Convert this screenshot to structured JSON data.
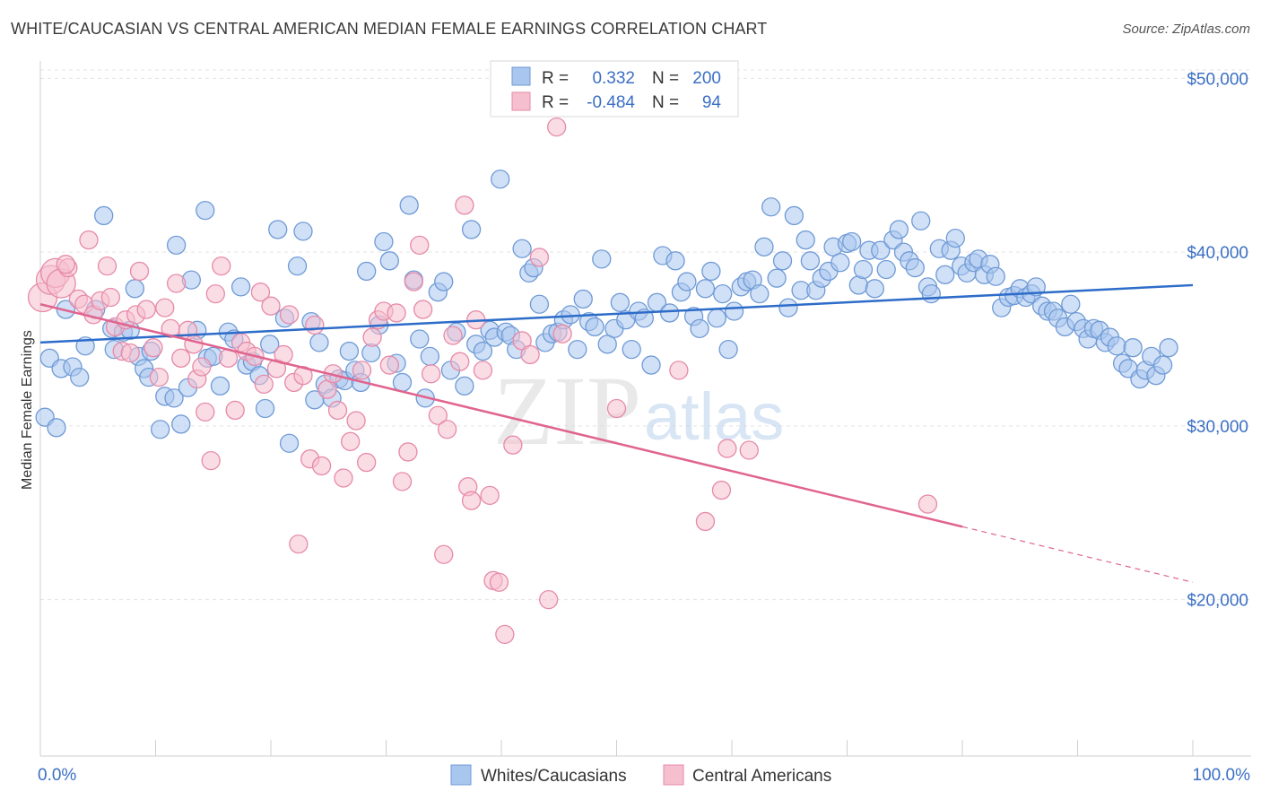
{
  "header": {
    "title": "WHITE/CAUCASIAN VS CENTRAL AMERICAN MEDIAN FEMALE EARNINGS CORRELATION CHART",
    "source": "Source: ZipAtlas.com"
  },
  "legend": {
    "r_label": "R =",
    "n_label": "N =",
    "rows": [
      {
        "r": "0.332",
        "n": "200"
      },
      {
        "r": "-0.484",
        "n": "94"
      }
    ]
  },
  "colors": {
    "blue_fill": "#a9c6ee",
    "blue_stroke": "#6f9ad6",
    "blue_line": "#2d6cc9",
    "pink_fill": "#f6bfd0",
    "pink_stroke": "#e68aa8",
    "pink_line": "#e0648e",
    "tick_text": "#3b6fc4"
  },
  "watermark": {
    "zip": "ZIP",
    "atlas": "atlas"
  },
  "chart_data": {
    "type": "scatter",
    "ylabel": "Median Female Earnings",
    "xlim": [
      0,
      100
    ],
    "ylim": [
      11000,
      51000
    ],
    "x_tick_labels": [
      "0.0%",
      "100.0%"
    ],
    "y_ticks": [
      20000,
      30000,
      40000,
      50000
    ],
    "y_tick_labels": [
      "$20,000",
      "$30,000",
      "$40,000",
      "$50,000"
    ],
    "grid": true,
    "legend_position": "top-center",
    "series": [
      {
        "name": "Whites/Caucasians",
        "trend": {
          "x": [
            0,
            100
          ],
          "y": [
            34800,
            38100
          ]
        },
        "points": [
          [
            0.4,
            30500
          ],
          [
            1.4,
            29900
          ],
          [
            0.8,
            33900
          ],
          [
            1.8,
            33300
          ],
          [
            2.2,
            36700
          ],
          [
            2.8,
            33400
          ],
          [
            3.4,
            32800
          ],
          [
            3.9,
            34600
          ],
          [
            4.8,
            36700
          ],
          [
            5.5,
            42100
          ],
          [
            6.2,
            35600
          ],
          [
            6.4,
            34400
          ],
          [
            7.2,
            35400
          ],
          [
            7.8,
            35500
          ],
          [
            8.2,
            37900
          ],
          [
            8.5,
            34000
          ],
          [
            9.0,
            33300
          ],
          [
            9.4,
            32800
          ],
          [
            9.6,
            34300
          ],
          [
            10.4,
            29800
          ],
          [
            10.8,
            31700
          ],
          [
            11.6,
            31600
          ],
          [
            11.8,
            40400
          ],
          [
            12.2,
            30100
          ],
          [
            12.8,
            32200
          ],
          [
            13.1,
            38400
          ],
          [
            13.6,
            35500
          ],
          [
            14.3,
            42400
          ],
          [
            14.5,
            33900
          ],
          [
            15.0,
            34000
          ],
          [
            15.6,
            32300
          ],
          [
            16.3,
            35400
          ],
          [
            16.8,
            35000
          ],
          [
            17.4,
            38000
          ],
          [
            17.9,
            33500
          ],
          [
            18.4,
            33700
          ],
          [
            19.0,
            32900
          ],
          [
            19.5,
            31000
          ],
          [
            19.9,
            34700
          ],
          [
            20.6,
            41300
          ],
          [
            21.2,
            36200
          ],
          [
            21.6,
            29000
          ],
          [
            22.3,
            39200
          ],
          [
            22.8,
            41200
          ],
          [
            23.5,
            36000
          ],
          [
            23.8,
            31500
          ],
          [
            24.2,
            34800
          ],
          [
            24.7,
            32400
          ],
          [
            25.3,
            31600
          ],
          [
            25.9,
            32700
          ],
          [
            26.4,
            32600
          ],
          [
            26.8,
            34300
          ],
          [
            27.3,
            33200
          ],
          [
            27.8,
            32500
          ],
          [
            28.3,
            38900
          ],
          [
            28.7,
            34200
          ],
          [
            29.4,
            35800
          ],
          [
            29.8,
            40600
          ],
          [
            30.3,
            39500
          ],
          [
            30.9,
            33600
          ],
          [
            31.4,
            32500
          ],
          [
            32.0,
            42700
          ],
          [
            32.4,
            38400
          ],
          [
            32.9,
            35000
          ],
          [
            33.4,
            31600
          ],
          [
            33.8,
            34000
          ],
          [
            34.5,
            37700
          ],
          [
            35.0,
            38300
          ],
          [
            35.6,
            33200
          ],
          [
            36.1,
            35400
          ],
          [
            36.8,
            32300
          ],
          [
            37.4,
            41300
          ],
          [
            37.8,
            34700
          ],
          [
            38.4,
            34300
          ],
          [
            39.0,
            35500
          ],
          [
            39.4,
            35100
          ],
          [
            39.9,
            44200
          ],
          [
            40.4,
            35400
          ],
          [
            40.8,
            35200
          ],
          [
            41.3,
            34400
          ],
          [
            41.8,
            40200
          ],
          [
            42.4,
            38800
          ],
          [
            42.8,
            39100
          ],
          [
            43.3,
            37000
          ],
          [
            43.8,
            34800
          ],
          [
            44.4,
            35300
          ],
          [
            44.9,
            35400
          ],
          [
            45.4,
            36100
          ],
          [
            46.0,
            36400
          ],
          [
            46.6,
            34400
          ],
          [
            47.1,
            37300
          ],
          [
            47.6,
            36000
          ],
          [
            48.1,
            35700
          ],
          [
            48.7,
            39600
          ],
          [
            49.2,
            34700
          ],
          [
            49.8,
            35600
          ],
          [
            50.3,
            37100
          ],
          [
            50.8,
            36100
          ],
          [
            51.3,
            34400
          ],
          [
            51.9,
            36600
          ],
          [
            52.4,
            36200
          ],
          [
            53.0,
            33500
          ],
          [
            53.5,
            37100
          ],
          [
            54.0,
            39800
          ],
          [
            54.6,
            36500
          ],
          [
            55.1,
            39500
          ],
          [
            55.6,
            37700
          ],
          [
            56.1,
            38300
          ],
          [
            56.7,
            36300
          ],
          [
            57.2,
            35600
          ],
          [
            57.7,
            37900
          ],
          [
            58.2,
            38900
          ],
          [
            58.7,
            36200
          ],
          [
            59.2,
            37600
          ],
          [
            59.7,
            34400
          ],
          [
            60.2,
            36600
          ],
          [
            60.8,
            38000
          ],
          [
            61.3,
            38300
          ],
          [
            61.8,
            38400
          ],
          [
            62.4,
            37600
          ],
          [
            62.8,
            40300
          ],
          [
            63.4,
            42600
          ],
          [
            63.9,
            38500
          ],
          [
            64.4,
            39500
          ],
          [
            64.9,
            36800
          ],
          [
            65.4,
            42100
          ],
          [
            66.0,
            37800
          ],
          [
            66.4,
            40700
          ],
          [
            66.8,
            39500
          ],
          [
            67.3,
            37800
          ],
          [
            67.8,
            38500
          ],
          [
            68.4,
            38900
          ],
          [
            68.8,
            40300
          ],
          [
            69.4,
            39400
          ],
          [
            70.0,
            40500
          ],
          [
            70.4,
            40600
          ],
          [
            71.0,
            38100
          ],
          [
            71.4,
            39000
          ],
          [
            71.9,
            40100
          ],
          [
            72.4,
            37900
          ],
          [
            72.9,
            40100
          ],
          [
            73.4,
            39000
          ],
          [
            74.0,
            40700
          ],
          [
            74.5,
            41300
          ],
          [
            74.9,
            40000
          ],
          [
            75.4,
            39500
          ],
          [
            75.9,
            39100
          ],
          [
            76.4,
            41800
          ],
          [
            77.0,
            38000
          ],
          [
            77.3,
            37600
          ],
          [
            78.0,
            40200
          ],
          [
            78.5,
            38700
          ],
          [
            79.0,
            40100
          ],
          [
            79.4,
            40800
          ],
          [
            79.9,
            39200
          ],
          [
            80.4,
            38800
          ],
          [
            81.0,
            39400
          ],
          [
            81.4,
            39600
          ],
          [
            81.9,
            38700
          ],
          [
            82.4,
            39300
          ],
          [
            82.9,
            38600
          ],
          [
            83.4,
            36800
          ],
          [
            84.0,
            37400
          ],
          [
            84.5,
            37500
          ],
          [
            85.0,
            37900
          ],
          [
            85.5,
            37400
          ],
          [
            86.0,
            37600
          ],
          [
            86.4,
            38000
          ],
          [
            86.9,
            36900
          ],
          [
            87.4,
            36600
          ],
          [
            87.9,
            36600
          ],
          [
            88.3,
            36200
          ],
          [
            88.9,
            35700
          ],
          [
            89.4,
            37000
          ],
          [
            89.9,
            36000
          ],
          [
            90.5,
            35600
          ],
          [
            90.9,
            35000
          ],
          [
            91.4,
            35600
          ],
          [
            91.9,
            35500
          ],
          [
            92.4,
            34800
          ],
          [
            92.8,
            35100
          ],
          [
            93.4,
            34600
          ],
          [
            93.9,
            33600
          ],
          [
            94.4,
            33300
          ],
          [
            94.8,
            34500
          ],
          [
            95.4,
            32700
          ],
          [
            95.9,
            33200
          ],
          [
            96.4,
            34000
          ],
          [
            96.8,
            32900
          ],
          [
            97.4,
            33500
          ],
          [
            97.9,
            34500
          ]
        ]
      },
      {
        "name": "Central Americans",
        "trend": {
          "x": [
            0,
            80
          ],
          "y": [
            37000,
            24200
          ]
        },
        "trend_dashed": {
          "x": [
            80,
            100
          ],
          "y": [
            24200,
            21000
          ]
        },
        "points": [
          [
            0.2,
            37400
          ],
          [
            0.9,
            38400
          ],
          [
            1.3,
            38800
          ],
          [
            1.8,
            38200
          ],
          [
            2.4,
            39100
          ],
          [
            2.2,
            39300
          ],
          [
            3.3,
            37300
          ],
          [
            3.8,
            37000
          ],
          [
            4.2,
            40700
          ],
          [
            4.6,
            36400
          ],
          [
            5.2,
            37200
          ],
          [
            5.8,
            39200
          ],
          [
            6.1,
            37400
          ],
          [
            6.5,
            35700
          ],
          [
            7.1,
            34300
          ],
          [
            7.4,
            36100
          ],
          [
            7.8,
            34200
          ],
          [
            8.3,
            36400
          ],
          [
            8.6,
            38900
          ],
          [
            9.2,
            36700
          ],
          [
            9.8,
            34500
          ],
          [
            10.3,
            32800
          ],
          [
            10.8,
            36800
          ],
          [
            11.3,
            35600
          ],
          [
            11.8,
            38200
          ],
          [
            12.2,
            33900
          ],
          [
            12.8,
            35500
          ],
          [
            13.3,
            34700
          ],
          [
            13.6,
            32700
          ],
          [
            14.0,
            33400
          ],
          [
            14.3,
            30800
          ],
          [
            14.8,
            28000
          ],
          [
            15.2,
            37600
          ],
          [
            15.7,
            39200
          ],
          [
            16.3,
            33900
          ],
          [
            16.9,
            30900
          ],
          [
            17.4,
            34800
          ],
          [
            17.9,
            34300
          ],
          [
            18.6,
            34000
          ],
          [
            19.1,
            37700
          ],
          [
            19.4,
            32400
          ],
          [
            20.0,
            36900
          ],
          [
            20.5,
            33300
          ],
          [
            21.1,
            34100
          ],
          [
            21.6,
            36400
          ],
          [
            22.0,
            32500
          ],
          [
            22.4,
            23200
          ],
          [
            22.8,
            32900
          ],
          [
            23.4,
            28100
          ],
          [
            23.8,
            35800
          ],
          [
            24.4,
            27700
          ],
          [
            24.9,
            32100
          ],
          [
            25.4,
            33000
          ],
          [
            25.8,
            30900
          ],
          [
            26.3,
            27000
          ],
          [
            26.9,
            29100
          ],
          [
            27.4,
            30300
          ],
          [
            27.9,
            33200
          ],
          [
            28.3,
            27900
          ],
          [
            28.8,
            35100
          ],
          [
            29.3,
            36100
          ],
          [
            29.8,
            36600
          ],
          [
            30.3,
            33500
          ],
          [
            30.9,
            36500
          ],
          [
            31.4,
            26800
          ],
          [
            31.9,
            28500
          ],
          [
            32.4,
            38300
          ],
          [
            32.9,
            40400
          ],
          [
            33.2,
            36700
          ],
          [
            33.9,
            33000
          ],
          [
            34.5,
            30600
          ],
          [
            35.0,
            22600
          ],
          [
            35.3,
            29800
          ],
          [
            35.8,
            35200
          ],
          [
            36.4,
            33700
          ],
          [
            36.8,
            42700
          ],
          [
            37.1,
            26500
          ],
          [
            37.4,
            25700
          ],
          [
            37.8,
            36100
          ],
          [
            38.4,
            33200
          ],
          [
            39.0,
            26000
          ],
          [
            39.3,
            21100
          ],
          [
            39.8,
            21000
          ],
          [
            40.3,
            18000
          ],
          [
            41.0,
            28900
          ],
          [
            41.8,
            34900
          ],
          [
            42.5,
            34100
          ],
          [
            43.3,
            39700
          ],
          [
            44.1,
            20000
          ],
          [
            44.8,
            47200
          ],
          [
            45.3,
            35300
          ],
          [
            50.0,
            31000
          ],
          [
            55.4,
            33200
          ],
          [
            57.7,
            24500
          ],
          [
            59.1,
            26300
          ],
          [
            59.6,
            28700
          ],
          [
            61.5,
            28600
          ],
          [
            77.0,
            25500
          ]
        ]
      }
    ]
  }
}
